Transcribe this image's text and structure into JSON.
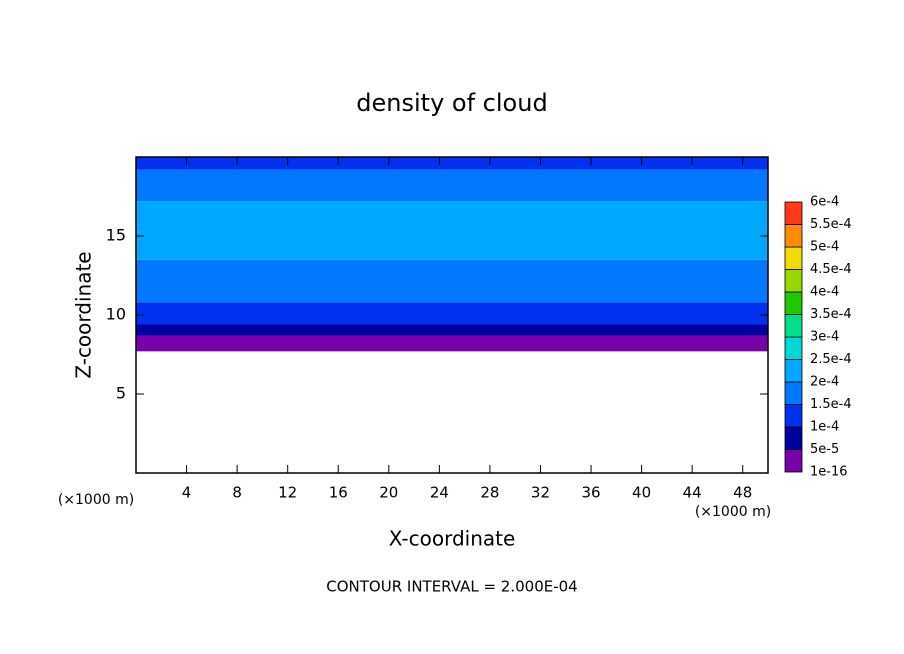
{
  "chart_data": {
    "type": "contour",
    "title": "density of cloud",
    "x_label": "X-coordinate",
    "y_label": "Z-coordinate",
    "x_unit": "(×1000 m)",
    "y_unit": "(×1000 m)",
    "annotation": "CONTOUR INTERVAL = 2.000E-04",
    "xlim": [
      0,
      50
    ],
    "xticks": [
      4,
      8,
      12,
      16,
      20,
      24,
      28,
      32,
      36,
      40,
      44,
      48
    ],
    "ylim": [
      0,
      20
    ],
    "yticks": [
      5,
      10,
      15
    ],
    "colorbar": {
      "ticks": [
        {
          "value": 1e-16,
          "label": "1e-16"
        },
        {
          "value": 5e-05,
          "label": "5e-5"
        },
        {
          "value": 0.0001,
          "label": "1e-4"
        },
        {
          "value": 0.00015,
          "label": "1.5e-4"
        },
        {
          "value": 0.0002,
          "label": "2e-4"
        },
        {
          "value": 0.00025,
          "label": "2.5e-4"
        },
        {
          "value": 0.0003,
          "label": "3e-4"
        },
        {
          "value": 0.00035,
          "label": "3.5e-4"
        },
        {
          "value": 0.0004,
          "label": "4e-4"
        },
        {
          "value": 0.00045,
          "label": "4.5e-4"
        },
        {
          "value": 0.0005,
          "label": "5e-4"
        },
        {
          "value": 0.00055,
          "label": "5.5e-4"
        },
        {
          "value": 0.0006,
          "label": "6e-4"
        }
      ],
      "colors": [
        "#7a00aa",
        "#0000a0",
        "#0030f0",
        "#0078ff",
        "#00a8ff",
        "#00d8d8",
        "#00e088",
        "#20c800",
        "#98d800",
        "#f0dc00",
        "#ff8c00",
        "#ff3a1a"
      ]
    },
    "bands": [
      {
        "z": [
          7.7,
          8.7
        ],
        "level": 0
      },
      {
        "z": [
          8.7,
          9.4
        ],
        "level": 1
      },
      {
        "z": [
          9.4,
          10.8
        ],
        "level": 2
      },
      {
        "z": [
          10.8,
          13.5
        ],
        "level": 3
      },
      {
        "z": [
          13.5,
          17.2
        ],
        "level": 4
      },
      {
        "z": [
          17.2,
          19.2
        ],
        "level": 3
      },
      {
        "z": [
          19.2,
          20
        ],
        "level": 2
      }
    ]
  }
}
